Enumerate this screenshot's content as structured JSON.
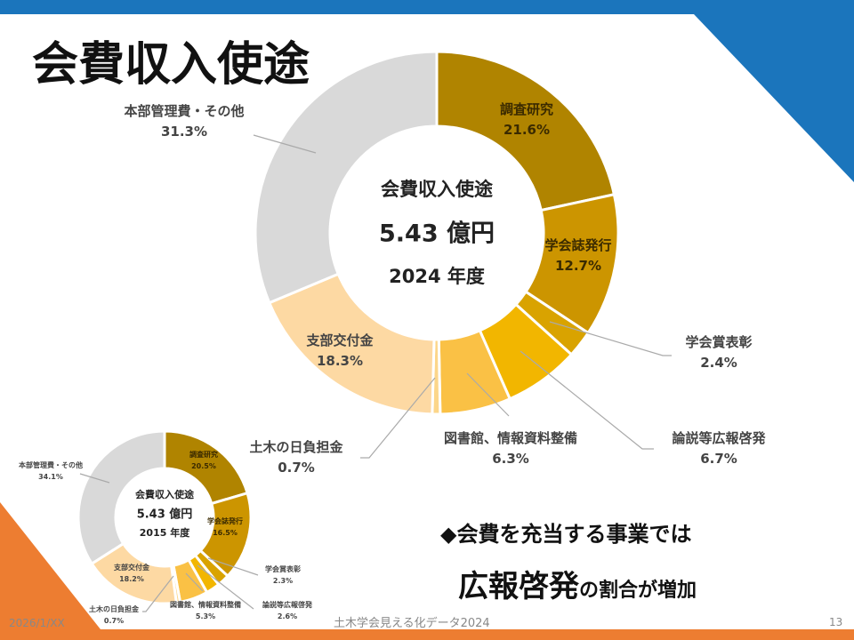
{
  "title": "会費収入使途",
  "colors": {
    "blue": "#1b75bc",
    "orange": "#ed7d31"
  },
  "chart_data": [
    {
      "type": "pie",
      "variant": "donut",
      "center_title": "会費収入使途",
      "center_amount": "5.43 億円",
      "center_year": "2024 年度",
      "categories": [
        "調査研究",
        "学会誌発行",
        "学会賞表彰",
        "論説等広報啓発",
        "図書館、情報資料整備",
        "土木の日負担金",
        "支部交付金",
        "本部管理費・その他"
      ],
      "values": [
        21.6,
        12.7,
        2.4,
        6.7,
        6.3,
        0.7,
        18.3,
        31.3
      ],
      "labels": [
        "21.6%",
        "12.7%",
        "2.4%",
        "6.7%",
        "6.3%",
        "0.7%",
        "18.3%",
        "31.3%"
      ],
      "colors": [
        "#b08400",
        "#cc9500",
        "#d9a300",
        "#f2b600",
        "#fac145",
        "#fcd68a",
        "#fdd9a3",
        "#d9d9d9"
      ]
    },
    {
      "type": "pie",
      "variant": "donut",
      "center_title": "会費収入使途",
      "center_amount": "5.43 億円",
      "center_year": "2015 年度",
      "categories": [
        "調査研究",
        "学会誌発行",
        "学会賞表彰",
        "論説等広報啓発",
        "図書館、情報資料整備",
        "土木の日負担金",
        "支部交付金",
        "本部管理費・その他"
      ],
      "values": [
        20.5,
        16.5,
        2.3,
        2.6,
        5.3,
        0.7,
        18.2,
        34.1
      ],
      "labels": [
        "20.5%",
        "16.5%",
        "2.3%",
        "2.6%",
        "5.3%",
        "0.7%",
        "18.2%",
        "34.1%"
      ],
      "colors": [
        "#b08400",
        "#cc9500",
        "#d9a300",
        "#f2b600",
        "#fac145",
        "#fcd68a",
        "#fdd9a3",
        "#d9d9d9"
      ]
    }
  ],
  "message": {
    "line1": "◆会費を充当する事業では",
    "emph": "広報啓発",
    "rest": "の割合が増加"
  },
  "footer": {
    "date": "2026/1/XX",
    "source": "土木学会見える化データ2024",
    "page": "13"
  }
}
